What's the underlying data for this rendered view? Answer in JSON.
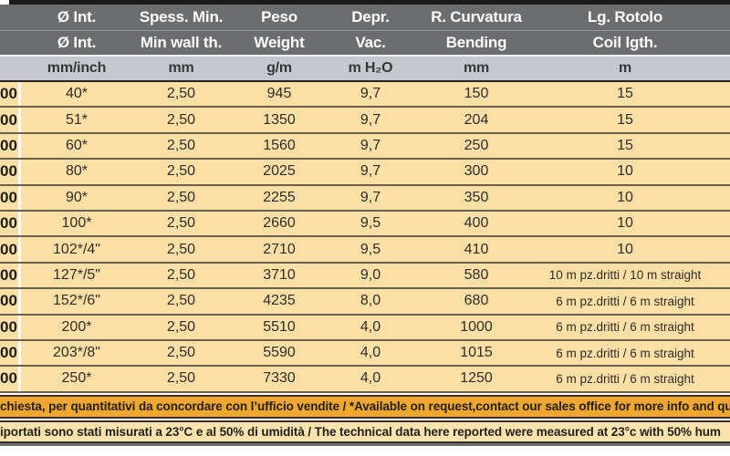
{
  "colors": {
    "header-bg": "#6c6d6f",
    "header-text": "#ffffff",
    "units-bg": "#c5c8cd",
    "units-text": "#35373a",
    "row-bg": "#fcdfa4",
    "row-sep": "#6a6152",
    "data-text": "#2e2d2b",
    "footer1-bg": "#efa72e",
    "footer2-bg": "#fce3ae",
    "footer-text": "#22201b",
    "top-bar": "#1c1c1c",
    "bottom-bar": "#6c6d6f",
    "dark-border": "#3a3126"
  },
  "table": {
    "columns": [
      {
        "it": "Ø Int.",
        "en": "Ø Int.",
        "unit": "mm/inch"
      },
      {
        "it": "Spess. Min.",
        "en": "Min wall th.",
        "unit": "mm"
      },
      {
        "it": "Peso",
        "en": "Weight",
        "unit": "g/m"
      },
      {
        "it": "Depr.",
        "en": "Vac.",
        "unit": "m H₂O"
      },
      {
        "it": "R. Curvatura",
        "en": "Bending",
        "unit": "mm"
      },
      {
        "it": "Lg. Rotolo",
        "en": "Coil lgth.",
        "unit": "m"
      }
    ],
    "rows": [
      {
        "code": "00",
        "int": "40*",
        "spess": "2,50",
        "peso": "945",
        "depr": "9,7",
        "curv": "150",
        "rot": "15"
      },
      {
        "code": "00",
        "int": "51*",
        "spess": "2,50",
        "peso": "1350",
        "depr": "9,7",
        "curv": "204",
        "rot": "15"
      },
      {
        "code": "00",
        "int": "60*",
        "spess": "2,50",
        "peso": "1560",
        "depr": "9,7",
        "curv": "250",
        "rot": "15"
      },
      {
        "code": "00",
        "int": "80*",
        "spess": "2,50",
        "peso": "2025",
        "depr": "9,7",
        "curv": "300",
        "rot": "10"
      },
      {
        "code": "00",
        "int": "90*",
        "spess": "2,50",
        "peso": "2255",
        "depr": "9,7",
        "curv": "350",
        "rot": "10"
      },
      {
        "code": "00",
        "int": "100*",
        "spess": "2,50",
        "peso": "2660",
        "depr": "9,5",
        "curv": "400",
        "rot": "10"
      },
      {
        "code": "00",
        "int": "102*/4\"",
        "spess": "2,50",
        "peso": "2710",
        "depr": "9,5",
        "curv": "410",
        "rot": "10"
      },
      {
        "code": "00",
        "int": "127*/5\"",
        "spess": "2,50",
        "peso": "3710",
        "depr": "9,0",
        "curv": "580",
        "rot": "10 m pz.dritti  / 10 m straight"
      },
      {
        "code": "00",
        "int": "152*/6\"",
        "spess": "2,50",
        "peso": "4235",
        "depr": "8,0",
        "curv": "680",
        "rot": "6 m pz.dritti  / 6 m straight"
      },
      {
        "code": "00",
        "int": "200*",
        "spess": "2,50",
        "peso": "5510",
        "depr": "4,0",
        "curv": "1000",
        "rot": "6 m pz.dritti  / 6 m straight"
      },
      {
        "code": "00",
        "int": "203*/8\"",
        "spess": "2,50",
        "peso": "5590",
        "depr": "4,0",
        "curv": "1015",
        "rot": "6 m pz.dritti  / 6 m straight"
      },
      {
        "code": "00",
        "int": "250*",
        "spess": "2,50",
        "peso": "7330",
        "depr": "4,0",
        "curv": "1250",
        "rot": "6 m pz.dritti  / 6 m straight"
      }
    ],
    "footnotes": {
      "availability": "chiesta, per quantitativi da concordare con l’ufficio vendite / *Available on request,contact our sales office for more info and qu",
      "conditions": "iportati sono stati misurati a 23°C e al 50% di umidità / The technical data here reported were measured at 23°c with 50% hum"
    }
  }
}
